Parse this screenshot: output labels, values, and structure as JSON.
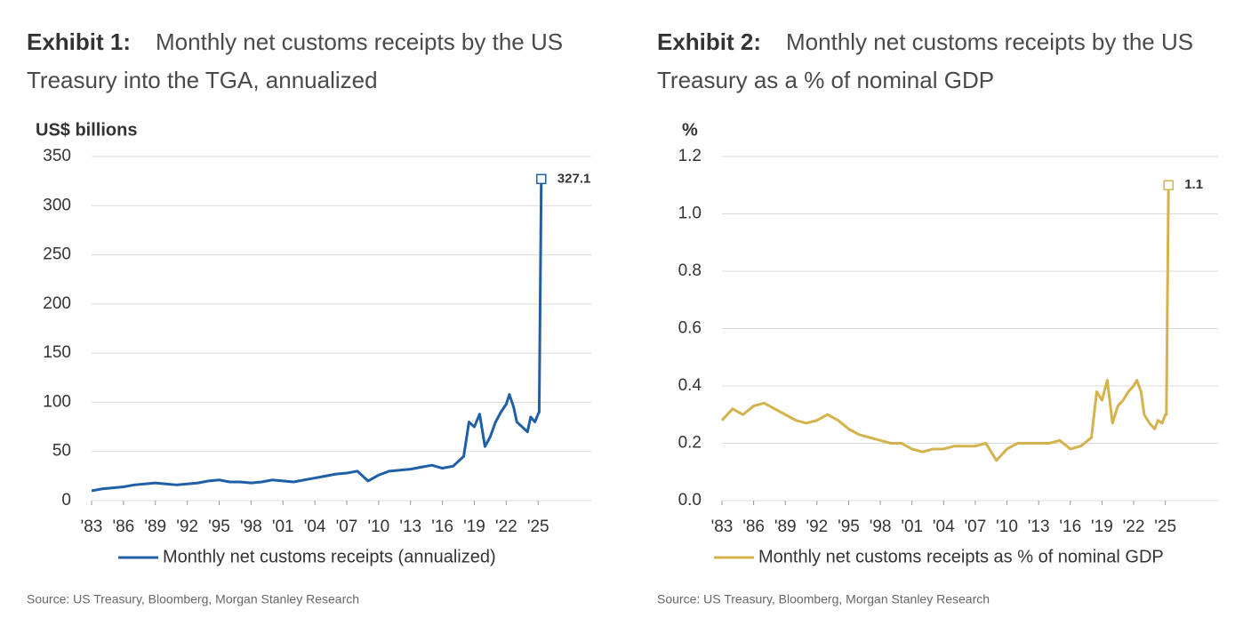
{
  "chart_data": [
    {
      "type": "line",
      "exhibit": "Exhibit 1:",
      "title": "Monthly net customs receipts by the US Treasury into the TGA, annualized",
      "y_label": "US$ billions",
      "source": "Source: US Treasury, Bloomberg, Morgan Stanley Research",
      "x": [
        1983,
        1984,
        1985,
        1986,
        1987,
        1988,
        1989,
        1990,
        1991,
        1992,
        1993,
        1994,
        1995,
        1996,
        1997,
        1998,
        1999,
        2000,
        2001,
        2002,
        2003,
        2004,
        2005,
        2006,
        2007,
        2008,
        2009,
        2010,
        2011,
        2012,
        2013,
        2014,
        2015,
        2016,
        2017,
        2018,
        2018.5,
        2019,
        2019.5,
        2020,
        2020.5,
        2021,
        2021.5,
        2022,
        2022.3,
        2022.7,
        2023,
        2023.5,
        2024,
        2024.3,
        2024.7,
        2025,
        2025.1,
        2025.3
      ],
      "series": [
        {
          "name": "Monthly net customs receipts (annualized)",
          "color": "#1f5fa8",
          "values": [
            10,
            12,
            13,
            14,
            16,
            17,
            18,
            17,
            16,
            17,
            18,
            20,
            21,
            19,
            19,
            18,
            19,
            21,
            20,
            19,
            21,
            23,
            25,
            27,
            28,
            30,
            20,
            26,
            30,
            31,
            32,
            34,
            36,
            33,
            35,
            45,
            80,
            75,
            88,
            55,
            65,
            80,
            90,
            98,
            108,
            95,
            80,
            75,
            70,
            85,
            80,
            88,
            90,
            327.1
          ]
        }
      ],
      "xlim": [
        1983,
        2030
      ],
      "xticks": [
        {
          "value": 1983,
          "label": "'83"
        },
        {
          "value": 1986,
          "label": "'86"
        },
        {
          "value": 1989,
          "label": "'89"
        },
        {
          "value": 1992,
          "label": "'92"
        },
        {
          "value": 1995,
          "label": "'95"
        },
        {
          "value": 1998,
          "label": "'98"
        },
        {
          "value": 2001,
          "label": "'01"
        },
        {
          "value": 2004,
          "label": "'04"
        },
        {
          "value": 2007,
          "label": "'07"
        },
        {
          "value": 2010,
          "label": "'10"
        },
        {
          "value": 2013,
          "label": "'13"
        },
        {
          "value": 2016,
          "label": "'16"
        },
        {
          "value": 2019,
          "label": "'19"
        },
        {
          "value": 2022,
          "label": "'22"
        },
        {
          "value": 2025,
          "label": "'25"
        }
      ],
      "ylim": [
        0,
        350
      ],
      "yticks": [
        0,
        50,
        100,
        150,
        200,
        250,
        300,
        350
      ],
      "grid": true
    },
    {
      "type": "line",
      "exhibit": "Exhibit 2:",
      "title": "Monthly net customs receipts by the US Treasury as a % of nominal GDP",
      "y_label": "%",
      "source": "Source: US Treasury, Bloomberg, Morgan Stanley Research",
      "x": [
        1983,
        1984,
        1985,
        1986,
        1987,
        1988,
        1989,
        1990,
        1991,
        1992,
        1993,
        1994,
        1995,
        1996,
        1997,
        1998,
        1999,
        2000,
        2001,
        2002,
        2003,
        2004,
        2005,
        2006,
        2007,
        2008,
        2009,
        2010,
        2011,
        2012,
        2013,
        2014,
        2015,
        2016,
        2017,
        2018,
        2018.5,
        2019,
        2019.5,
        2020,
        2020.5,
        2021,
        2021.5,
        2022,
        2022.3,
        2022.7,
        2023,
        2023.5,
        2024,
        2024.3,
        2024.7,
        2025,
        2025.1,
        2025.3
      ],
      "series": [
        {
          "name": "Monthly net customs receipts as % of nominal GDP",
          "color": "#d4b24c",
          "values": [
            0.28,
            0.32,
            0.3,
            0.33,
            0.34,
            0.32,
            0.3,
            0.28,
            0.27,
            0.28,
            0.3,
            0.28,
            0.25,
            0.23,
            0.22,
            0.21,
            0.2,
            0.2,
            0.18,
            0.17,
            0.18,
            0.18,
            0.19,
            0.19,
            0.19,
            0.2,
            0.14,
            0.18,
            0.2,
            0.2,
            0.2,
            0.2,
            0.21,
            0.18,
            0.19,
            0.22,
            0.38,
            0.35,
            0.42,
            0.27,
            0.33,
            0.35,
            0.38,
            0.4,
            0.42,
            0.38,
            0.3,
            0.27,
            0.25,
            0.28,
            0.27,
            0.3,
            0.3,
            1.1
          ]
        }
      ],
      "xlim": [
        1983,
        2030
      ],
      "xticks": [
        {
          "value": 1983,
          "label": "'83"
        },
        {
          "value": 1986,
          "label": "'86"
        },
        {
          "value": 1989,
          "label": "'89"
        },
        {
          "value": 1992,
          "label": "'92"
        },
        {
          "value": 1995,
          "label": "'95"
        },
        {
          "value": 1998,
          "label": "'98"
        },
        {
          "value": 2001,
          "label": "'01"
        },
        {
          "value": 2004,
          "label": "'04"
        },
        {
          "value": 2007,
          "label": "'07"
        },
        {
          "value": 2010,
          "label": "'10"
        },
        {
          "value": 2013,
          "label": "'13"
        },
        {
          "value": 2016,
          "label": "'16"
        },
        {
          "value": 2019,
          "label": "'19"
        },
        {
          "value": 2022,
          "label": "'22"
        },
        {
          "value": 2025,
          "label": "'25"
        }
      ],
      "ylim": [
        0,
        1.2
      ],
      "yticks": [
        {
          "value": 0,
          "label": "0.0"
        },
        0.2,
        0.4,
        0.6,
        0.8,
        {
          "value": 1,
          "label": "1.0"
        },
        1.2
      ],
      "grid": true
    }
  ]
}
